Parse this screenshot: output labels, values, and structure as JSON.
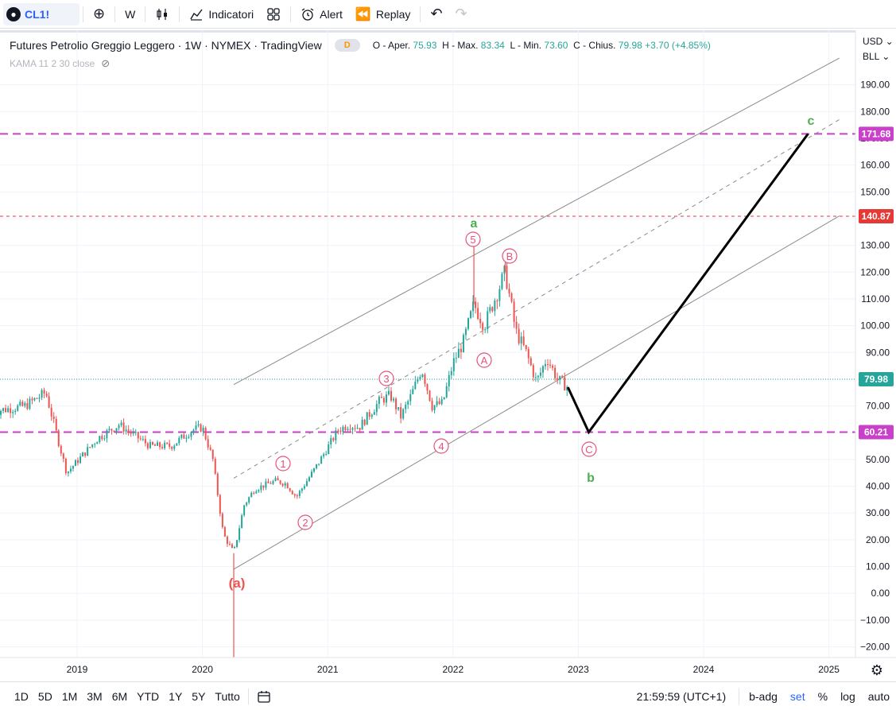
{
  "toolbar": {
    "symbol": "CL1!",
    "interval": "W",
    "indicators_label": "Indicatori",
    "alert_label": "Alert",
    "replay_label": "Replay"
  },
  "legend": {
    "title": "Futures Petrolio Greggio Leggero · 1W · NYMEX · TradingView",
    "badge": "D",
    "open_label": "O - Aper.",
    "open_value": "75.93",
    "high_label": "H - Max.",
    "high_value": "83.34",
    "low_label": "L - Min.",
    "low_value": "73.60",
    "close_label": "C - Chius.",
    "close_value": "79.98",
    "change": "+3.70 (+4.85%)",
    "indicator": "KAMA 11 2 30 close"
  },
  "price_axis": {
    "currency": "USD",
    "unit": "BLL",
    "ticks": [
      "190.00",
      "180.00",
      "170.00",
      "160.00",
      "150.00",
      "140.00",
      "130.00",
      "120.00",
      "110.00",
      "100.00",
      "90.00",
      "80.00",
      "70.00",
      "60.00",
      "50.00",
      "40.00",
      "30.00",
      "20.00",
      "10.00",
      "0.00",
      "−10.00",
      "−20.00"
    ],
    "current_price_label": "79.98",
    "level_labels": [
      "171.68",
      "140.87",
      "60.21"
    ]
  },
  "time_axis": {
    "ticks": [
      "2019",
      "2020",
      "2021",
      "2022",
      "2023",
      "2024",
      "2025"
    ]
  },
  "wave_labels": {
    "a_paren": "(a)",
    "w1": "1",
    "w2": "2",
    "w3": "3",
    "w4": "4",
    "w5": "5",
    "wA": "A",
    "wB": "B",
    "wC": "C",
    "a": "a",
    "b": "b",
    "c": "c"
  },
  "bottom": {
    "ranges": [
      "1D",
      "5D",
      "1M",
      "3M",
      "6M",
      "YTD",
      "1Y",
      "5Y",
      "Tutto"
    ],
    "clock": "21:59:59 (UTC+1)",
    "options": [
      "b-adg",
      "set",
      "%",
      "log",
      "auto"
    ],
    "active_option": "set"
  },
  "colors": {
    "up": "#26a69a",
    "down": "#ef5350",
    "level_purple": "#c941c9",
    "level_red": "#e53935",
    "wave_pink": "#e8517a",
    "wave_green": "#4caf50",
    "accent": "#2962ff"
  },
  "chart_data": {
    "type": "candlestick",
    "title": "Futures Petrolio Greggio Leggero · 1W · NYMEX · TradingView",
    "ylim": [
      -22,
      200
    ],
    "x_range": [
      "2018-05",
      "2025-03"
    ],
    "horizontal_levels": [
      171.68,
      140.87,
      79.98,
      60.21
    ],
    "price_path": [
      [
        "2018-05",
        68
      ],
      [
        "2018-08",
        70
      ],
      [
        "2018-10",
        75
      ],
      [
        "2018-12",
        45
      ],
      [
        "2019-03",
        58
      ],
      [
        "2019-05",
        63
      ],
      [
        "2019-08",
        55
      ],
      [
        "2019-10",
        55
      ],
      [
        "2019-12",
        61
      ],
      [
        "2020-01",
        62
      ],
      [
        "2020-02",
        50
      ],
      [
        "2020-03",
        22
      ],
      [
        "2020-04",
        15
      ],
      [
        "2020-05",
        33
      ],
      [
        "2020-06",
        39
      ],
      [
        "2020-08",
        42
      ],
      [
        "2020-09",
        41
      ],
      [
        "2020-10",
        36
      ],
      [
        "2020-11",
        42
      ],
      [
        "2020-12",
        48
      ],
      [
        "2021-02",
        61
      ],
      [
        "2021-03",
        63
      ],
      [
        "2021-04",
        62
      ],
      [
        "2021-06",
        72
      ],
      [
        "2021-07",
        74
      ],
      [
        "2021-08",
        66
      ],
      [
        "2021-09",
        74
      ],
      [
        "2021-10",
        84
      ],
      [
        "2021-11",
        70
      ],
      [
        "2021-12",
        71
      ],
      [
        "2022-01",
        86
      ],
      [
        "2022-02",
        94
      ],
      [
        "2022-03",
        108
      ],
      [
        "2022-04",
        100
      ],
      [
        "2022-06",
        120
      ],
      [
        "2022-07",
        98
      ],
      [
        "2022-08",
        90
      ],
      [
        "2022-09",
        79
      ],
      [
        "2022-10",
        88
      ],
      [
        "2022-11",
        80
      ],
      [
        "2022-12",
        77
      ]
    ],
    "notable_points": [
      {
        "label": "(a)",
        "x": "2020-04",
        "y": -37.63
      },
      {
        "label": "5",
        "x": "2022-03",
        "y": 130.5
      },
      {
        "label": "B",
        "x": "2022-06",
        "y": 123.7
      }
    ],
    "projection": [
      [
        "2022-12",
        77
      ],
      [
        "2023-02",
        60.21
      ],
      [
        "2024-11",
        171.68
      ]
    ],
    "channel": {
      "upper": [
        [
          "2020-04",
          78
        ],
        [
          "2025-02",
          200
        ]
      ],
      "median": [
        [
          "2020-04",
          43
        ],
        [
          "2025-02",
          177
        ]
      ],
      "lower": [
        [
          "2020-04",
          9
        ],
        [
          "2025-02",
          141
        ]
      ]
    }
  }
}
